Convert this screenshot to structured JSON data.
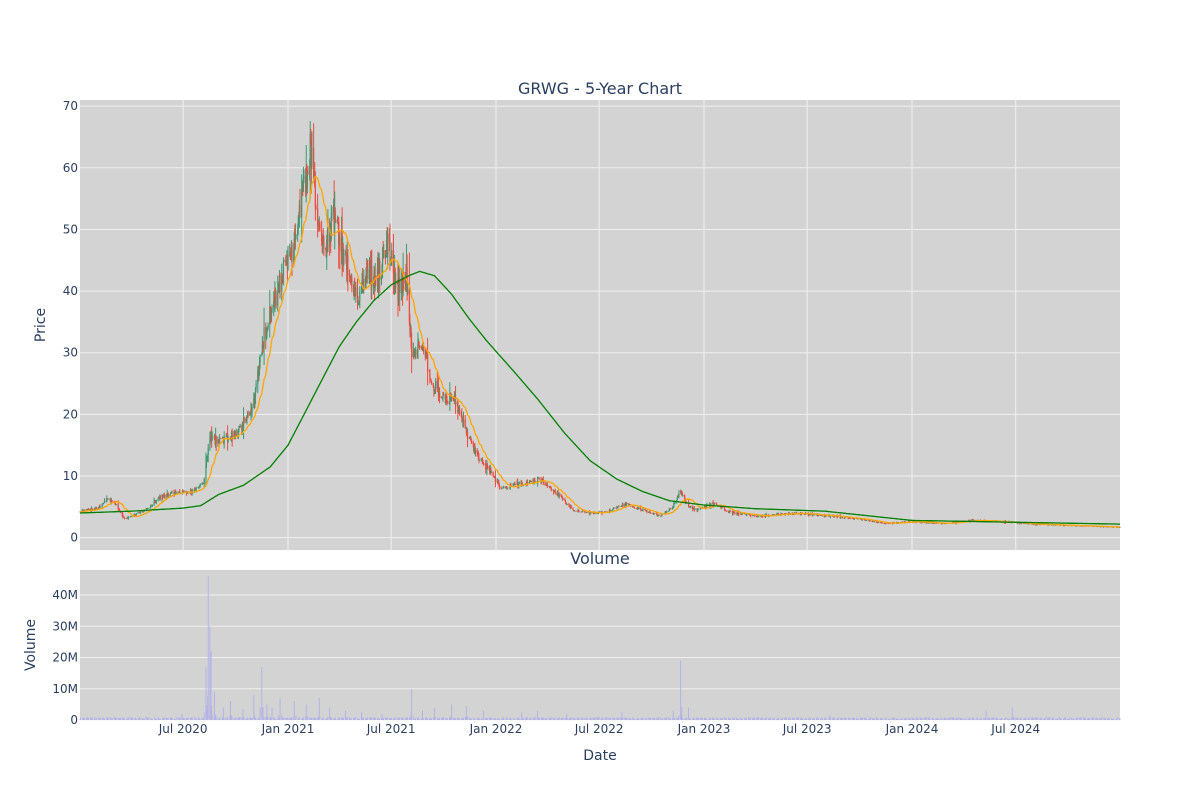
{
  "colors": {
    "background": "#ffffff",
    "plot_bg": "#d3d3d3",
    "grid": "#f0f0f0",
    "text": "#2a3f5f",
    "up": "#3d9970",
    "down": "#ef4b3f",
    "ma_short": "#ffa500",
    "ma_long": "#008000",
    "volume": "#b3b3e6"
  },
  "chart_data": [
    {
      "type": "candlestick",
      "title": "GRWG - 5-Year Chart",
      "ylabel": "Price",
      "xlabel": "",
      "ylim": [
        -2,
        71
      ],
      "xlim": [
        "2020-01-02",
        "2024-12-31"
      ],
      "yticks": [
        0,
        10,
        20,
        30,
        40,
        50,
        60,
        70
      ],
      "xticks": [
        {
          "date": "2020-07-01",
          "label": "Jul 2020"
        },
        {
          "date": "2021-01-01",
          "label": "Jan 2021"
        },
        {
          "date": "2021-07-01",
          "label": "Jul 2021"
        },
        {
          "date": "2022-01-01",
          "label": "Jan 2022"
        },
        {
          "date": "2022-07-01",
          "label": "Jul 2022"
        },
        {
          "date": "2023-01-01",
          "label": "Jan 2023"
        },
        {
          "date": "2023-07-01",
          "label": "Jul 2023"
        },
        {
          "date": "2024-01-01",
          "label": "Jan 2024"
        },
        {
          "date": "2024-07-01",
          "label": "Jul 2024"
        }
      ],
      "grid": true,
      "price_path": [
        [
          "2020-01-02",
          4.2
        ],
        [
          "2020-02-03",
          4.8
        ],
        [
          "2020-02-20",
          6.3
        ],
        [
          "2020-03-05",
          5.5
        ],
        [
          "2020-03-20",
          3.0
        ],
        [
          "2020-04-06",
          3.6
        ],
        [
          "2020-05-01",
          4.8
        ],
        [
          "2020-05-20",
          6.5
        ],
        [
          "2020-06-10",
          7.2
        ],
        [
          "2020-07-06",
          7.3
        ],
        [
          "2020-07-24",
          7.8
        ],
        [
          "2020-08-07",
          9.2
        ],
        [
          "2020-08-17",
          16.5
        ],
        [
          "2020-09-01",
          15.5
        ],
        [
          "2020-09-21",
          16.5
        ],
        [
          "2020-10-12",
          18.0
        ],
        [
          "2020-11-02",
          22.0
        ],
        [
          "2020-11-20",
          33.0
        ],
        [
          "2020-12-07",
          38.0
        ],
        [
          "2020-12-21",
          42.0
        ],
        [
          "2021-01-11",
          48.0
        ],
        [
          "2021-02-01",
          58.0
        ],
        [
          "2021-02-10",
          64.0
        ],
        [
          "2021-02-22",
          52.0
        ],
        [
          "2021-03-05",
          46.0
        ],
        [
          "2021-03-22",
          52.0
        ],
        [
          "2021-04-12",
          45.0
        ],
        [
          "2021-05-03",
          38.0
        ],
        [
          "2021-05-20",
          43.0
        ],
        [
          "2021-06-07",
          42.0
        ],
        [
          "2021-06-25",
          48.0
        ],
        [
          "2021-07-12",
          40.0
        ],
        [
          "2021-07-28",
          42.0
        ],
        [
          "2021-08-06",
          30.0
        ],
        [
          "2021-08-25",
          31.0
        ],
        [
          "2021-09-13",
          25.0
        ],
        [
          "2021-10-04",
          22.0
        ],
        [
          "2021-10-20",
          23.0
        ],
        [
          "2021-11-10",
          17.0
        ],
        [
          "2021-12-01",
          13.0
        ],
        [
          "2021-12-20",
          11.0
        ],
        [
          "2022-01-10",
          8.0
        ],
        [
          "2022-02-01",
          8.5
        ],
        [
          "2022-03-01",
          9.0
        ],
        [
          "2022-03-21",
          9.5
        ],
        [
          "2022-04-20",
          7.0
        ],
        [
          "2022-05-16",
          4.5
        ],
        [
          "2022-06-15",
          4.0
        ],
        [
          "2022-07-15",
          4.2
        ],
        [
          "2022-08-15",
          5.5
        ],
        [
          "2022-09-15",
          4.5
        ],
        [
          "2022-10-17",
          3.5
        ],
        [
          "2022-11-07",
          5.0
        ],
        [
          "2022-11-21",
          7.5
        ],
        [
          "2022-12-05",
          5.0
        ],
        [
          "2022-12-20",
          4.5
        ],
        [
          "2023-01-17",
          5.5
        ],
        [
          "2023-02-15",
          4.2
        ],
        [
          "2023-04-03",
          3.5
        ],
        [
          "2023-05-15",
          3.8
        ],
        [
          "2023-06-15",
          4.0
        ],
        [
          "2023-08-15",
          3.5
        ],
        [
          "2023-10-02",
          3.0
        ],
        [
          "2023-11-15",
          2.3
        ],
        [
          "2024-01-02",
          2.6
        ],
        [
          "2024-03-01",
          2.3
        ],
        [
          "2024-04-15",
          2.8
        ],
        [
          "2024-06-03",
          2.6
        ],
        [
          "2024-08-01",
          2.2
        ],
        [
          "2024-10-01",
          2.0
        ],
        [
          "2024-12-31",
          1.7
        ]
      ],
      "ma_long_path": [
        [
          "2020-01-02",
          4.0
        ],
        [
          "2020-04-01",
          4.3
        ],
        [
          "2020-07-01",
          4.8
        ],
        [
          "2020-08-01",
          5.2
        ],
        [
          "2020-09-01",
          7.0
        ],
        [
          "2020-10-15",
          8.5
        ],
        [
          "2020-12-01",
          11.5
        ],
        [
          "2021-01-01",
          15.0
        ],
        [
          "2021-02-01",
          20.5
        ],
        [
          "2021-03-01",
          25.5
        ],
        [
          "2021-04-01",
          31.0
        ],
        [
          "2021-05-01",
          35.0
        ],
        [
          "2021-06-01",
          38.5
        ],
        [
          "2021-07-01",
          41.0
        ],
        [
          "2021-08-01",
          42.5
        ],
        [
          "2021-08-20",
          43.2
        ],
        [
          "2021-09-15",
          42.5
        ],
        [
          "2021-10-15",
          39.5
        ],
        [
          "2021-11-15",
          35.5
        ],
        [
          "2021-12-15",
          32.0
        ],
        [
          "2022-02-01",
          27.0
        ],
        [
          "2022-03-15",
          22.5
        ],
        [
          "2022-05-01",
          17.0
        ],
        [
          "2022-06-15",
          12.5
        ],
        [
          "2022-08-01",
          9.5
        ],
        [
          "2022-09-15",
          7.5
        ],
        [
          "2022-11-01",
          6.0
        ],
        [
          "2023-01-01",
          5.3
        ],
        [
          "2023-04-01",
          4.7
        ],
        [
          "2023-08-01",
          4.3
        ],
        [
          "2023-10-01",
          3.7
        ],
        [
          "2024-01-01",
          2.8
        ],
        [
          "2024-07-01",
          2.5
        ],
        [
          "2024-12-31",
          2.2
        ]
      ]
    },
    {
      "type": "bar",
      "title": "Volume",
      "ylabel": "Volume",
      "xlabel": "Date",
      "ylim": [
        0,
        48000000
      ],
      "yticks": [
        {
          "value": 0,
          "label": "0"
        },
        {
          "value": 10000000,
          "label": "10M"
        },
        {
          "value": 20000000,
          "label": "20M"
        },
        {
          "value": 30000000,
          "label": "30M"
        },
        {
          "value": 40000000,
          "label": "40M"
        }
      ],
      "baseline": 500000,
      "spikes": [
        [
          "2020-06-29",
          2000000
        ],
        [
          "2020-08-10",
          17000000
        ],
        [
          "2020-08-14",
          46000000
        ],
        [
          "2020-08-17",
          30000000
        ],
        [
          "2020-08-19",
          22000000
        ],
        [
          "2020-08-25",
          9000000
        ],
        [
          "2020-09-10",
          4000000
        ],
        [
          "2020-09-22",
          6000000
        ],
        [
          "2020-10-14",
          3500000
        ],
        [
          "2020-11-02",
          8000000
        ],
        [
          "2020-11-16",
          17000000
        ],
        [
          "2020-11-25",
          5000000
        ],
        [
          "2020-12-04",
          4000000
        ],
        [
          "2020-12-18",
          7000000
        ],
        [
          "2021-01-12",
          6000000
        ],
        [
          "2021-02-02",
          5000000
        ],
        [
          "2021-02-25",
          7000000
        ],
        [
          "2021-03-15",
          4000000
        ],
        [
          "2021-04-12",
          3000000
        ],
        [
          "2021-05-10",
          2500000
        ],
        [
          "2021-06-15",
          2000000
        ],
        [
          "2021-08-06",
          10000000
        ],
        [
          "2021-08-25",
          3000000
        ],
        [
          "2021-09-15",
          4000000
        ],
        [
          "2021-10-15",
          5000000
        ],
        [
          "2021-11-10",
          4500000
        ],
        [
          "2021-12-10",
          3000000
        ],
        [
          "2022-01-15",
          3000000
        ],
        [
          "2022-02-15",
          2500000
        ],
        [
          "2022-03-15",
          3000000
        ],
        [
          "2022-05-05",
          2000000
        ],
        [
          "2022-08-10",
          2500000
        ],
        [
          "2022-11-08",
          3000000
        ],
        [
          "2022-11-21",
          19000000
        ],
        [
          "2022-12-05",
          4000000
        ],
        [
          "2023-08-10",
          1500000
        ],
        [
          "2024-05-10",
          3000000
        ],
        [
          "2024-06-25",
          4000000
        ]
      ]
    }
  ],
  "seed": 42
}
